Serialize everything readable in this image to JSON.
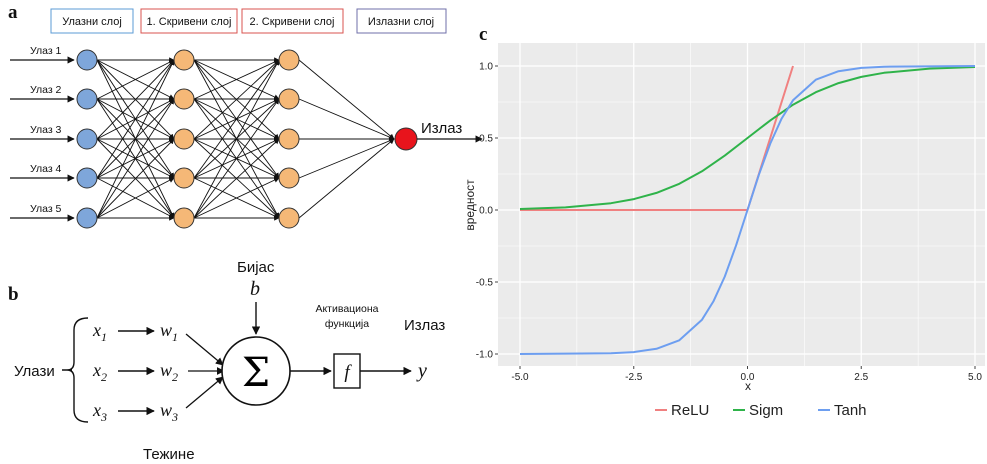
{
  "panel_a": {
    "letter": "a",
    "layer_boxes": [
      {
        "label": "Улазни слој",
        "color": "#5b9bd5"
      },
      {
        "label": "1. Скривени слој",
        "color": "#d9534f"
      },
      {
        "label": "2. Скривени слој",
        "color": "#d9534f"
      },
      {
        "label": "Излазни слој",
        "color": "#6f6fa8"
      }
    ],
    "inputs": [
      "Улаз 1",
      "Улаз 2",
      "Улаз 3",
      "Улаз 4",
      "Улаз 5"
    ],
    "output_label": "Излаз",
    "colors": {
      "input": "#7ea6da",
      "hidden": "#f5b877",
      "output": "#e8141c"
    }
  },
  "panel_b": {
    "letter": "b",
    "inputs_label": "Улази",
    "x_labels": [
      "x",
      "x",
      "x"
    ],
    "x_subs": [
      "1",
      "2",
      "3"
    ],
    "w_labels": [
      "w",
      "w",
      "w"
    ],
    "w_subs": [
      "1",
      "2",
      "3"
    ],
    "bias_title": "Бијас",
    "bias_symbol": "b",
    "sum_symbol": "Σ",
    "activation_line1": "Активациона",
    "activation_line2": "функција",
    "f_symbol": "f",
    "output_label": "Излаз",
    "y_symbol": "y",
    "weights_label": "Тежине"
  },
  "chart_letter": "c",
  "chart_data": {
    "type": "line",
    "xlabel": "x",
    "ylabel": "вредност",
    "xlim": [
      -5,
      5
    ],
    "ylim": [
      -1,
      1
    ],
    "xticks": [
      -5.0,
      -2.5,
      0.0,
      2.5,
      5.0
    ],
    "xtick_labels": [
      "-5.0",
      "-2.5",
      "0.0",
      "2.5",
      "5.0"
    ],
    "yticks": [
      -1.0,
      -0.5,
      0.0,
      0.5,
      1.0
    ],
    "ytick_labels": [
      "-1.0",
      "-0.5",
      "0.0",
      "0.5",
      "1.0"
    ],
    "grid": true,
    "legend_position": "bottom",
    "series": [
      {
        "name": "ReLU",
        "color": "#f08080",
        "x": [
          -5.0,
          0.0,
          1.0
        ],
        "y": [
          0.0,
          0.0,
          1.0
        ]
      },
      {
        "name": "Sigm",
        "color": "#2fb34a",
        "x": [
          -5.0,
          -4.0,
          -3.0,
          -2.5,
          -2.0,
          -1.5,
          -1.0,
          -0.5,
          0.0,
          0.5,
          1.0,
          1.5,
          2.0,
          2.5,
          3.0,
          4.0,
          5.0
        ],
        "y": [
          0.007,
          0.018,
          0.047,
          0.076,
          0.119,
          0.182,
          0.269,
          0.378,
          0.5,
          0.622,
          0.731,
          0.818,
          0.881,
          0.924,
          0.953,
          0.982,
          0.993
        ]
      },
      {
        "name": "Tanh",
        "color": "#6d9ef0",
        "x": [
          -5.0,
          -3.0,
          -2.5,
          -2.0,
          -1.5,
          -1.0,
          -0.75,
          -0.5,
          -0.25,
          0.0,
          0.25,
          0.5,
          0.75,
          1.0,
          1.5,
          2.0,
          2.5,
          3.0,
          5.0
        ],
        "y": [
          -1.0,
          -0.995,
          -0.987,
          -0.964,
          -0.905,
          -0.762,
          -0.635,
          -0.462,
          -0.245,
          0.0,
          0.245,
          0.462,
          0.635,
          0.762,
          0.905,
          0.964,
          0.987,
          0.995,
          1.0
        ]
      }
    ]
  }
}
